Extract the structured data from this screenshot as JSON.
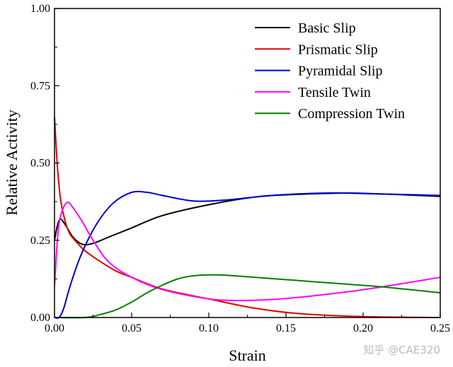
{
  "chart_data": {
    "type": "line",
    "title": "",
    "xlabel": "Strain",
    "ylabel": "Relative Activity",
    "xlim": [
      0,
      0.25
    ],
    "ylim": [
      0,
      1.0
    ],
    "xticks": [
      "0.00",
      "0.05",
      "0.10",
      "0.15",
      "0.20",
      "0.25"
    ],
    "xtick_values": [
      0,
      0.05,
      0.1,
      0.15,
      0.2,
      0.25
    ],
    "yticks": [
      "0.00",
      "0.25",
      "0.50",
      "0.75",
      "1.00"
    ],
    "ytick_values": [
      0,
      0.25,
      0.5,
      0.75,
      1.0
    ],
    "grid": false,
    "legend_position": "top-right",
    "series": [
      {
        "name": "Basic Slip",
        "color": "#000000",
        "x": [
          0,
          0.002,
          0.004,
          0.007,
          0.012,
          0.018,
          0.025,
          0.035,
          0.05,
          0.07,
          0.1,
          0.13,
          0.15,
          0.18,
          0.2,
          0.25
        ],
        "y": [
          0.25,
          0.3,
          0.318,
          0.3,
          0.26,
          0.237,
          0.24,
          0.26,
          0.29,
          0.33,
          0.365,
          0.39,
          0.397,
          0.402,
          0.402,
          0.392
        ]
      },
      {
        "name": "Prismatic Slip",
        "color": "#e00000",
        "x": [
          0,
          0.001,
          0.002,
          0.004,
          0.007,
          0.01,
          0.015,
          0.02,
          0.03,
          0.04,
          0.05,
          0.07,
          0.1,
          0.13,
          0.16,
          0.2,
          0.25
        ],
        "y": [
          0.65,
          0.56,
          0.48,
          0.38,
          0.31,
          0.27,
          0.24,
          0.215,
          0.18,
          0.15,
          0.13,
          0.092,
          0.06,
          0.03,
          0.012,
          0.003,
          0.0
        ]
      },
      {
        "name": "Pyramidal Slip",
        "color": "#0000cc",
        "x": [
          0,
          0.003,
          0.006,
          0.01,
          0.017,
          0.027,
          0.038,
          0.05,
          0.06,
          0.07,
          0.09,
          0.11,
          0.13,
          0.15,
          0.18,
          0.21,
          0.25
        ],
        "y": [
          0.0,
          0.0,
          0.03,
          0.1,
          0.2,
          0.3,
          0.37,
          0.405,
          0.405,
          0.395,
          0.377,
          0.38,
          0.39,
          0.398,
          0.403,
          0.4,
          0.395
        ]
      },
      {
        "name": "Tensile Twin",
        "color": "#ff00ff",
        "x": [
          0,
          0.002,
          0.004,
          0.008,
          0.012,
          0.018,
          0.025,
          0.035,
          0.05,
          0.07,
          0.1,
          0.12,
          0.14,
          0.16,
          0.2,
          0.25
        ],
        "y": [
          0.1,
          0.26,
          0.33,
          0.372,
          0.355,
          0.31,
          0.25,
          0.18,
          0.13,
          0.09,
          0.06,
          0.055,
          0.058,
          0.066,
          0.09,
          0.13
        ]
      },
      {
        "name": "Compression Twin",
        "color": "#008000",
        "x": [
          0,
          0.02,
          0.03,
          0.04,
          0.05,
          0.06,
          0.07,
          0.08,
          0.09,
          0.1,
          0.11,
          0.13,
          0.17,
          0.21,
          0.25
        ],
        "y": [
          0.0,
          0.0,
          0.01,
          0.025,
          0.05,
          0.08,
          0.105,
          0.125,
          0.135,
          0.138,
          0.137,
          0.13,
          0.115,
          0.1,
          0.08
        ]
      }
    ]
  },
  "watermark": "知乎 @CAE320"
}
